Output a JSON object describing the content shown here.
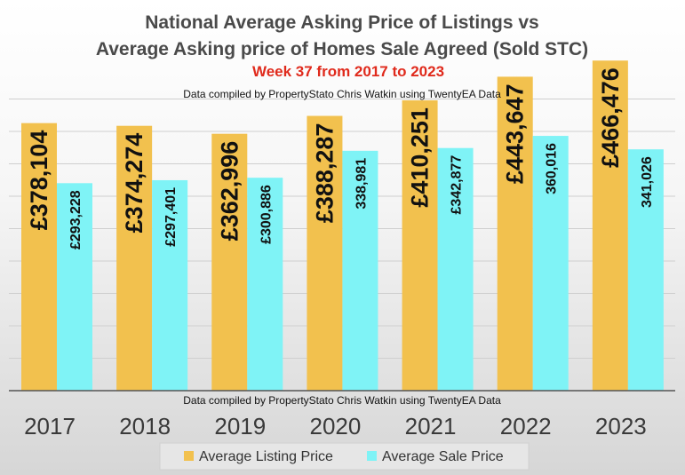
{
  "chart_data": {
    "type": "bar",
    "title_lines": [
      "National Average Asking Price of Listings vs",
      "Average Asking price of Homes Sale Agreed (Sold STC)"
    ],
    "subtitle": "Week 37 from 2017 to 2023",
    "credit_top": "Data compiled by PropertyStato Chris Watkin using TwentyEA Data",
    "credit_bottom": "Data compiled by PropertyStato Chris Watkin using TwentyEA Data",
    "categories": [
      "2017",
      "2018",
      "2019",
      "2020",
      "2021",
      "2022",
      "2023"
    ],
    "series": [
      {
        "name": "Average Listing Price",
        "color": "#F2C14E",
        "values": [
          378104,
          374274,
          362996,
          388287,
          410251,
          443647,
          466476
        ],
        "labels": [
          "£378,104",
          "£374,274",
          "£362,996",
          "£388,287",
          "£410,251",
          "£443,647",
          "£466,476"
        ]
      },
      {
        "name": "Average Sale Price",
        "color": "#7FF3F6",
        "values": [
          293228,
          297401,
          300886,
          338981,
          342877,
          360016,
          341026
        ],
        "labels": [
          "£293,228",
          "£297,401",
          "£300,886",
          "338,981",
          "£342,877",
          "360,016",
          "341,026"
        ]
      }
    ],
    "ylim": [
      0,
      500000
    ],
    "grid": true,
    "legend_position": "bottom"
  }
}
